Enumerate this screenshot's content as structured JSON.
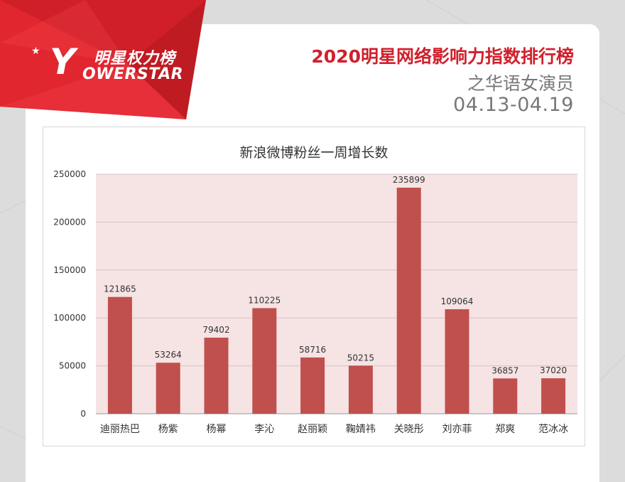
{
  "brand": {
    "star": "★",
    "y_letter": "Y",
    "cn_name": "明星权力榜",
    "en_name": "OWERSTAR"
  },
  "header": {
    "title": "2020明星网络影响力指数排行榜",
    "subtitle": "之华语女演员",
    "date_range": "04.13-04.19"
  },
  "colors": {
    "bar": "#c0504d",
    "plot_bg": "#f6e3e3",
    "accent": "#d0202c",
    "banner": "#e1262f"
  },
  "chart_data": {
    "type": "bar",
    "title": "新浪微博粉丝一周增长数",
    "categories": [
      "迪丽热巴",
      "杨紫",
      "杨幂",
      "李沁",
      "赵丽颖",
      "鞠婧祎",
      "关晓彤",
      "刘亦菲",
      "郑爽",
      "范冰冰"
    ],
    "values": [
      121865,
      53264,
      79402,
      110225,
      58716,
      50215,
      235899,
      109064,
      36857,
      37020
    ],
    "ylim": [
      0,
      250000
    ],
    "yticks": [
      0,
      50000,
      100000,
      150000,
      200000,
      250000
    ],
    "grid": true,
    "legend": "none",
    "data_labels": true
  }
}
